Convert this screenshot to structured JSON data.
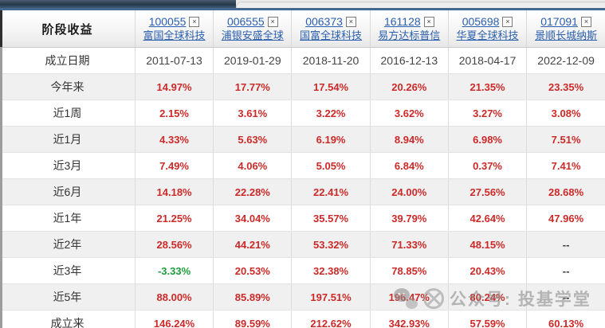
{
  "table": {
    "corner_header": "阶段收益",
    "funds": [
      {
        "code": "100055",
        "name": "富国全球科技"
      },
      {
        "code": "006555",
        "name": "浦银安盛全球"
      },
      {
        "code": "006373",
        "name": "国富全球科技"
      },
      {
        "code": "161128",
        "name": "易方达标普信"
      },
      {
        "code": "005698",
        "name": "华夏全球科技"
      },
      {
        "code": "017091",
        "name": "景顺长城纳斯"
      }
    ],
    "rows": [
      {
        "label": "成立日期",
        "type": "date",
        "values": [
          "2011-07-13",
          "2019-01-29",
          "2018-11-20",
          "2016-12-13",
          "2018-04-17",
          "2022-12-09"
        ]
      },
      {
        "label": "今年来",
        "values": [
          "14.97%",
          "17.77%",
          "17.54%",
          "20.26%",
          "21.35%",
          "23.35%"
        ]
      },
      {
        "label": "近1周",
        "values": [
          "2.15%",
          "3.61%",
          "3.22%",
          "3.62%",
          "3.27%",
          "3.08%"
        ]
      },
      {
        "label": "近1月",
        "values": [
          "4.33%",
          "5.63%",
          "6.19%",
          "8.94%",
          "6.98%",
          "7.51%"
        ]
      },
      {
        "label": "近3月",
        "values": [
          "7.49%",
          "4.06%",
          "5.05%",
          "6.84%",
          "0.37%",
          "7.41%"
        ]
      },
      {
        "label": "近6月",
        "values": [
          "14.18%",
          "22.28%",
          "22.41%",
          "24.00%",
          "27.56%",
          "28.68%"
        ]
      },
      {
        "label": "近1年",
        "values": [
          "21.25%",
          "34.04%",
          "35.57%",
          "39.79%",
          "42.64%",
          "47.96%"
        ]
      },
      {
        "label": "近2年",
        "values": [
          "28.56%",
          "44.21%",
          "53.32%",
          "71.33%",
          "48.15%",
          "--"
        ]
      },
      {
        "label": "近3年",
        "values": [
          "-3.33%",
          "20.53%",
          "32.38%",
          "78.85%",
          "20.43%",
          "--"
        ]
      },
      {
        "label": "近5年",
        "values": [
          "88.00%",
          "85.89%",
          "197.51%",
          "196.47%",
          "80.24%",
          "--"
        ]
      },
      {
        "label": "成立来",
        "values": [
          "146.24%",
          "89.59%",
          "212.62%",
          "342.93%",
          "57.59%",
          "60.13%"
        ]
      }
    ]
  },
  "icons": {
    "close": "×"
  },
  "watermark": {
    "text": "公众号: 投基学堂"
  },
  "colors": {
    "positive": "#cc2a28",
    "negative": "#1d9e3c",
    "link": "#2b5fae",
    "accent_line": "#44688f",
    "stripe": "#f0f0f0"
  }
}
